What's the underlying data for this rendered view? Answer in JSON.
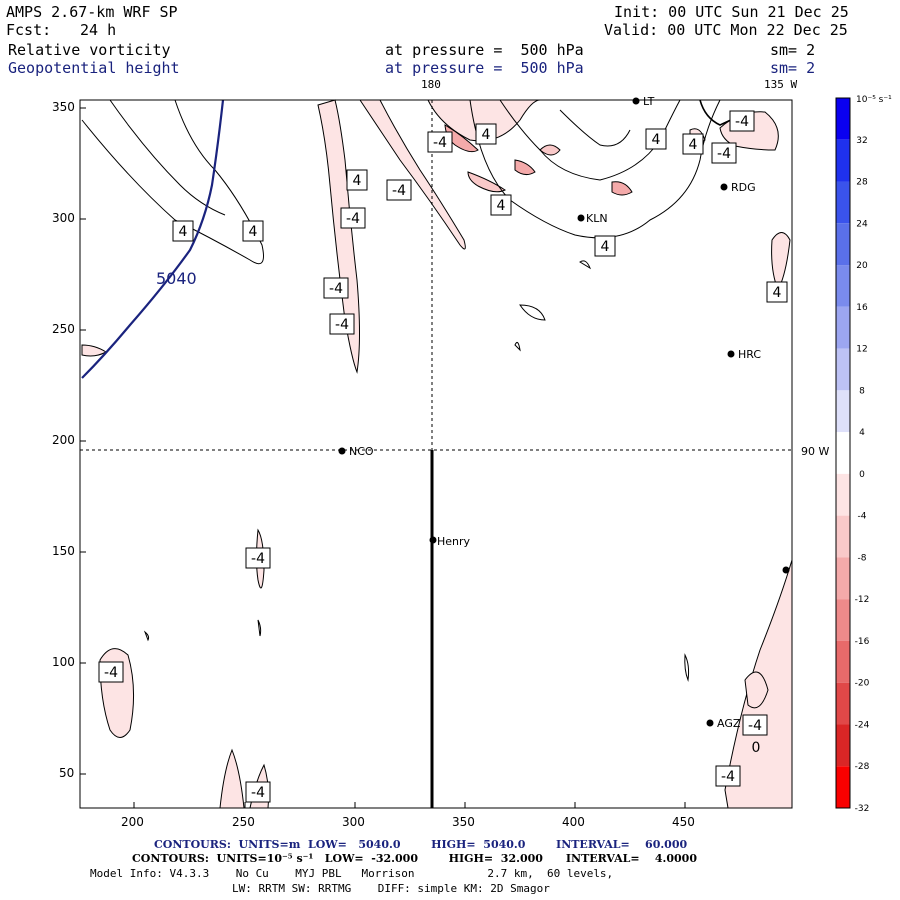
{
  "header": {
    "model": "AMPS 2.67-km WRF SP",
    "fcst_label": "Fcst:",
    "fcst_value": "24 h",
    "init": "Init: 00 UTC Sun 21 Dec 25",
    "valid": "Valid: 00 UTC Mon 22 Dec 25"
  },
  "fields": [
    {
      "name": "Relative vorticity",
      "level": "at pressure =  500 hPa",
      "smooth": "sm= 2",
      "color": "#000000"
    },
    {
      "name": "Geopotential height",
      "level": "at pressure =  500 hPa",
      "smooth": "sm= 2",
      "color": "#1a237e"
    }
  ],
  "map": {
    "x_ticks": [
      "200",
      "250",
      "300",
      "350",
      "400",
      "450"
    ],
    "y_ticks": [
      "350",
      "300",
      "250",
      "200",
      "150",
      "100",
      "50"
    ],
    "meridian_180": "180",
    "meridian_135w": "135 W",
    "meridian_90w": "90 W",
    "height_contour_label": "5040",
    "stations": [
      {
        "id": "NCO"
      },
      {
        "id": "Henry"
      },
      {
        "id": "RDG"
      },
      {
        "id": "KLN"
      },
      {
        "id": "HRC"
      },
      {
        "id": "AGZ"
      },
      {
        "id": "LT"
      },
      {
        "id": ""
      }
    ],
    "contour_labels": [
      "-4",
      "4",
      "0"
    ]
  },
  "colorbar": {
    "unit": "10⁻⁵ s⁻¹",
    "labels": [
      "32",
      "28",
      "24",
      "20",
      "16",
      "12",
      "8",
      "4",
      "0",
      "-4",
      "-8",
      "-12",
      "-16",
      "-20",
      "-24",
      "-28",
      "-32"
    ],
    "colors": [
      "#0a00f0",
      "#1f31ee",
      "#3a53ec",
      "#5a70ea",
      "#7a8bed",
      "#9ca6f1",
      "#bdc2f5",
      "#dee0fa",
      "#ffffff",
      "#fde4e4",
      "#f9c9c9",
      "#f4aaaa",
      "#ee8a8a",
      "#e86a6a",
      "#e14848",
      "#da2626",
      "#fa0000"
    ]
  },
  "footer": {
    "line1_label": "CONTOURS:  UNITS=m  LOW=   5040.0        HIGH=  5040.0        INTERVAL=    60.000",
    "line2_label": "CONTOURS:  UNITS=10⁻⁵ s⁻¹   LOW=  -32.000        HIGH=  32.000      INTERVAL=    4.0000",
    "line3": "Model Info: V4.3.3    No Cu    MYJ PBL   Morrison           2.7 km,  60 levels,",
    "line4": "LW: RRTM SW: RRTMG    DIFF: simple KM: 2D Smagor"
  }
}
